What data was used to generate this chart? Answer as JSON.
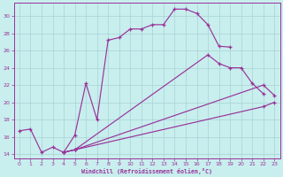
{
  "bg_color": "#c8eeee",
  "grid_color": "#a8d4d4",
  "line_color": "#993399",
  "xlabel": "Windchill (Refroidissement éolien,°C)",
  "xlim": [
    -0.5,
    23.5
  ],
  "ylim": [
    13.5,
    31.5
  ],
  "x_ticks": [
    0,
    1,
    2,
    3,
    4,
    5,
    6,
    7,
    8,
    9,
    10,
    11,
    12,
    13,
    14,
    15,
    16,
    17,
    18,
    19,
    20,
    21,
    22,
    23
  ],
  "y_ticks": [
    14,
    16,
    18,
    20,
    22,
    24,
    26,
    28,
    30
  ],
  "curve1_x": [
    0,
    1,
    2,
    3,
    4,
    5,
    6,
    7,
    8,
    9,
    10,
    11,
    12,
    13,
    14,
    15,
    16,
    17,
    18,
    19
  ],
  "curve1_y": [
    16.7,
    16.9,
    14.2,
    14.8,
    14.2,
    16.2,
    22.2,
    18.0,
    27.2,
    27.5,
    28.5,
    28.5,
    29.0,
    29.0,
    30.8,
    30.8,
    30.3,
    29.0,
    26.5,
    26.4
  ],
  "curve2_x": [
    4,
    5,
    17,
    18,
    19,
    20,
    21,
    22
  ],
  "curve2_y": [
    14.2,
    14.5,
    25.5,
    24.5,
    24.0,
    24.0,
    22.2,
    21.0
  ],
  "curve3_x": [
    4,
    5,
    22,
    23
  ],
  "curve3_y": [
    14.2,
    14.5,
    22.0,
    20.8
  ],
  "curve4_x": [
    4,
    5,
    22,
    23
  ],
  "curve4_y": [
    14.2,
    14.5,
    19.5,
    20.0
  ]
}
